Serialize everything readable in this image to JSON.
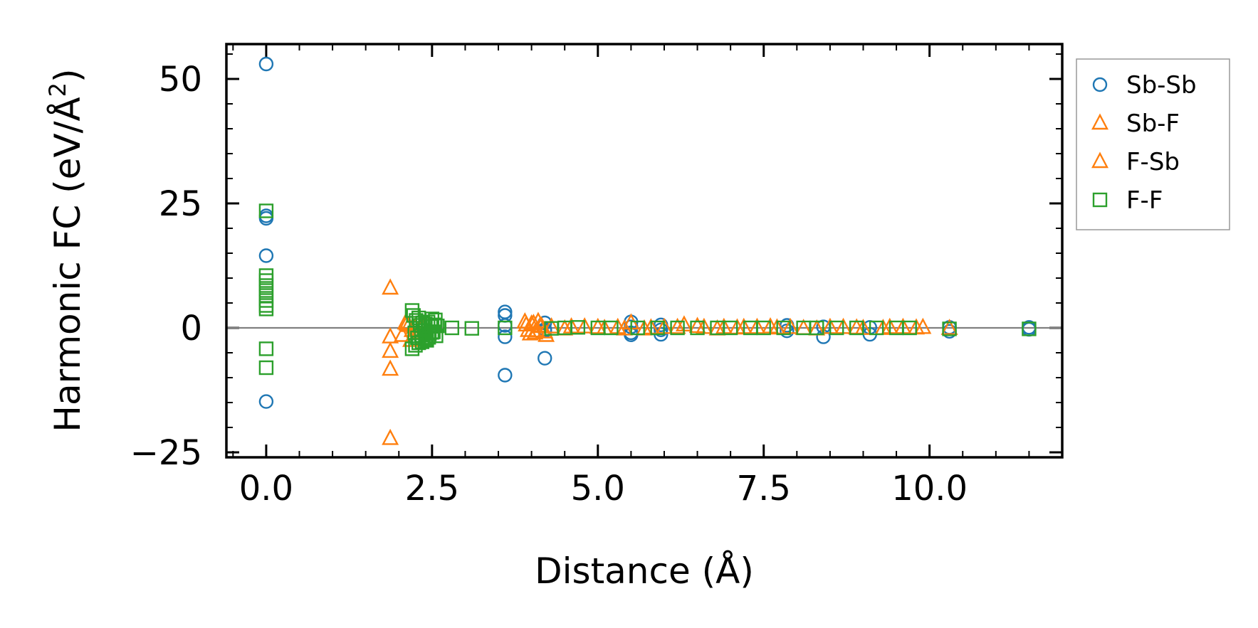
{
  "chart_data": {
    "type": "scatter",
    "title": "",
    "xlabel": "Distance (Å)",
    "ylabel_main": "Harmonic FC (eV/Å",
    "ylabel_sup": "2",
    "ylabel_close": ")",
    "xlim": [
      -0.6,
      12.0
    ],
    "ylim": [
      -26,
      57
    ],
    "xticks": [
      0.0,
      2.5,
      5.0,
      7.5,
      10.0
    ],
    "xtick_labels": [
      "0.0",
      "2.5",
      "5.0",
      "7.5",
      "10.0"
    ],
    "yticks": [
      -25,
      0,
      25,
      50
    ],
    "ytick_labels": [
      "−25",
      "0",
      "25",
      "50"
    ],
    "zero_line": 0,
    "legend_position": "outside-right-top",
    "series": [
      {
        "name": "Sb-Sb",
        "marker": "circle",
        "color": "#1f77b4",
        "x": [
          0,
          0,
          0,
          0,
          0,
          3.6,
          3.6,
          3.6,
          3.6,
          3.6,
          4.2,
          4.2,
          4.2,
          4.2,
          5.5,
          5.5,
          5.5,
          5.5,
          5.95,
          5.95,
          5.95,
          7.85,
          7.85,
          8.4,
          8.4,
          9.1,
          9.1,
          10.3,
          10.3,
          11.5,
          11.5
        ],
        "y": [
          53,
          22.5,
          22,
          14.5,
          -14.8,
          3.2,
          2.5,
          0.5,
          -1.8,
          -9.5,
          1.0,
          -0.3,
          -0.6,
          -6.1,
          1.2,
          0.2,
          -1.0,
          -1.4,
          0.6,
          -0.4,
          -1.3,
          0.5,
          -0.6,
          0.2,
          -1.8,
          0.1,
          -1.3,
          0.1,
          -0.7,
          0.1,
          -0.3
        ]
      },
      {
        "name": "Sb-F",
        "marker": "triangle",
        "color": "#ff7f0e",
        "x": [
          1.87,
          1.87,
          1.87,
          1.87,
          1.87,
          2.1,
          2.15,
          2.2,
          2.3,
          2.35,
          3.9,
          3.95,
          4.0,
          4.05,
          4.1,
          4.15,
          4.2,
          4.3,
          4.5,
          4.8,
          5.1,
          5.3,
          5.5,
          5.7,
          6.0,
          6.3,
          6.6,
          6.9,
          7.2,
          7.6,
          7.9,
          8.3,
          8.7,
          9.0,
          9.4,
          9.8,
          10.3
        ],
        "y": [
          8.0,
          -1.8,
          -4.7,
          -8.3,
          -22.2,
          1.0,
          0.5,
          -0.5,
          -1.0,
          0.3,
          1.2,
          -0.5,
          0.8,
          -1.0,
          1.3,
          0.4,
          -0.8,
          0.2,
          -0.2,
          0.2,
          -0.1,
          0.1,
          1.0,
          -0.2,
          0.1,
          0.6,
          0.1,
          0.1,
          0.1,
          0.2,
          0.1,
          -0.2,
          0.1,
          -0.1,
          0.1,
          0.0,
          -0.1
        ]
      },
      {
        "name": "F-Sb",
        "marker": "triangle",
        "color": "#ff7f0e",
        "x": [
          2.05,
          2.12,
          2.18,
          2.25,
          2.32,
          3.92,
          3.98,
          4.03,
          4.08,
          4.13,
          4.22,
          4.6,
          5.0,
          5.4,
          5.8,
          6.2,
          6.5,
          6.8,
          7.1,
          7.4,
          7.7,
          8.1,
          8.5,
          8.9,
          9.3,
          9.6,
          9.9
        ],
        "y": [
          -1.5,
          0.8,
          -2.5,
          0.2,
          -0.3,
          0.6,
          -1.2,
          0.9,
          -0.6,
          0.3,
          -1.5,
          0.2,
          0.1,
          -0.2,
          0.0,
          0.1,
          0.3,
          -0.2,
          0.0,
          0.1,
          0.0,
          -0.1,
          0.1,
          0.0,
          -0.1,
          0.1,
          0.1
        ]
      },
      {
        "name": "F-F",
        "marker": "square",
        "color": "#2ca02c",
        "x": [
          0,
          0,
          0,
          0,
          0,
          0,
          0,
          0,
          0,
          0,
          0,
          2.2,
          2.22,
          2.24,
          2.26,
          2.28,
          2.3,
          2.32,
          2.34,
          2.36,
          2.38,
          2.4,
          2.42,
          2.44,
          2.46,
          2.48,
          2.5,
          2.52,
          2.54,
          2.56,
          2.58,
          2.2,
          2.25,
          2.3,
          2.35,
          2.4,
          2.45,
          2.5,
          2.55,
          2.8,
          3.1,
          3.6,
          4.3,
          4.5,
          4.7,
          5.0,
          5.2,
          5.6,
          5.9,
          6.2,
          6.5,
          6.8,
          7.0,
          7.3,
          7.5,
          7.8,
          8.1,
          8.3,
          8.6,
          8.9,
          9.2,
          9.5,
          9.7,
          10.3,
          11.5
        ],
        "y": [
          23.5,
          10.5,
          9.5,
          8.5,
          7.5,
          6.5,
          5.5,
          4.5,
          3.8,
          -4.2,
          -8.0,
          3.5,
          2.5,
          -1.0,
          1.5,
          -2.0,
          2.0,
          0.5,
          -1.5,
          1.0,
          -0.5,
          0.8,
          -2.5,
          1.2,
          -1.2,
          0.3,
          1.8,
          -0.8,
          0.6,
          -1.6,
          0.4,
          -4.2,
          -3.5,
          -3.0,
          -2.8,
          -2.2,
          -1.9,
          -0.9,
          1.6,
          0.0,
          -0.1,
          0.0,
          -0.1,
          0.0,
          0.1,
          0.0,
          0.0,
          0.0,
          0.0,
          0.0,
          0.0,
          0.0,
          0.0,
          0.0,
          0.0,
          0.0,
          0.0,
          0.0,
          0.0,
          0.0,
          0.0,
          0.0,
          0.0,
          -0.2,
          -0.2
        ]
      }
    ]
  }
}
